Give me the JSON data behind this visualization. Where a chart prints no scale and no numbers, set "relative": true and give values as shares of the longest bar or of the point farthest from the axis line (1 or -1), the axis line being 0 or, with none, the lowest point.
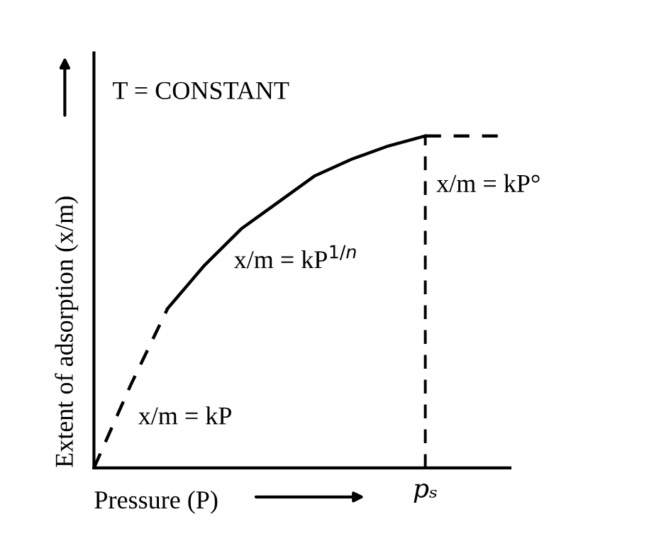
{
  "chart_data": {
    "type": "line",
    "relative": true,
    "xlabel": "Pressure (P)",
    "ylabel": "Extent of adsorption (x/m)",
    "categories": [
      null,
      null,
      null,
      null,
      null,
      null,
      null,
      null,
      null,
      null,
      null,
      null
    ],
    "series": [
      {
        "color": "#000000",
        "line_style": "dashed",
        "values": [
          0,
          0.25,
          0.48,
          null,
          null,
          null,
          null,
          null,
          null,
          null,
          null,
          null
        ]
      },
      {
        "color": "#000000",
        "line_style": "solid",
        "values": [
          null,
          null,
          0.48,
          0.61,
          0.72,
          0.8,
          0.88,
          0.93,
          0.97,
          1.0,
          null,
          null
        ]
      },
      {
        "color": "#000000",
        "line_style": "dashed",
        "values": [
          null,
          null,
          null,
          null,
          null,
          null,
          null,
          null,
          null,
          1.0,
          1.0,
          1.0
        ]
      }
    ],
    "annotations": [
      "T = CONSTANT",
      "x/m = kP",
      "x/m = kP$^{1/n}$",
      "x/m = kP°",
      "pₛ"
    ],
    "tick_labels": "x",
    "grid": false,
    "marker": "none"
  }
}
